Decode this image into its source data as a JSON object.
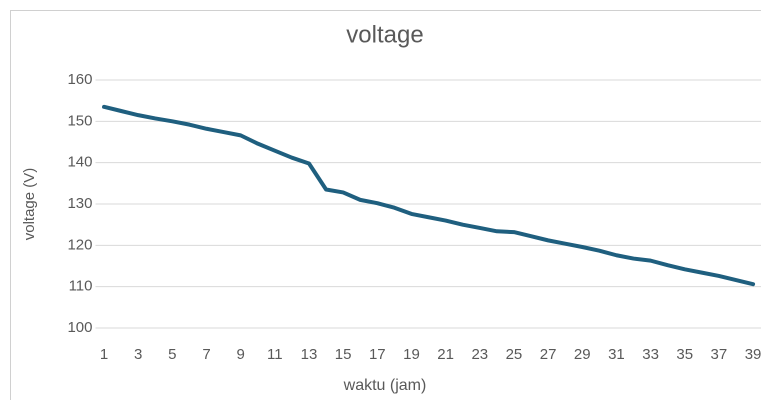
{
  "chart_data": {
    "type": "line",
    "title": "voltage",
    "x_label": "waktu (jam)",
    "y_label": "voltage (V)",
    "categories": [
      1,
      null,
      3,
      null,
      5,
      null,
      7,
      null,
      9,
      null,
      11,
      null,
      13,
      null,
      15,
      null,
      17,
      null,
      19,
      null,
      21,
      null,
      23,
      null,
      25,
      null,
      27,
      null,
      29,
      null,
      31,
      null,
      33,
      null,
      35,
      null,
      37,
      null,
      39
    ],
    "series": [
      {
        "name": "voltage",
        "color": "#1f5f7f",
        "values": [
          153.5,
          152.5,
          151.5,
          150.7,
          150,
          149.2,
          148.2,
          147.4,
          146.6,
          144.6,
          142.9,
          141.2,
          139.8,
          133.5,
          132.8,
          131,
          130.2,
          129.1,
          127.6,
          126.8,
          126,
          125,
          124.2,
          123.4,
          123.2,
          122.2,
          121.2,
          120.4,
          119.6,
          118.7,
          117.6,
          116.8,
          116.3,
          115.2,
          114.2,
          113.4,
          112.6,
          111.6,
          110.6
        ]
      }
    ],
    "ylim": [
      100,
      160
    ],
    "yticks": [
      100,
      110,
      120,
      130,
      140,
      150,
      160
    ],
    "grid": true
  }
}
